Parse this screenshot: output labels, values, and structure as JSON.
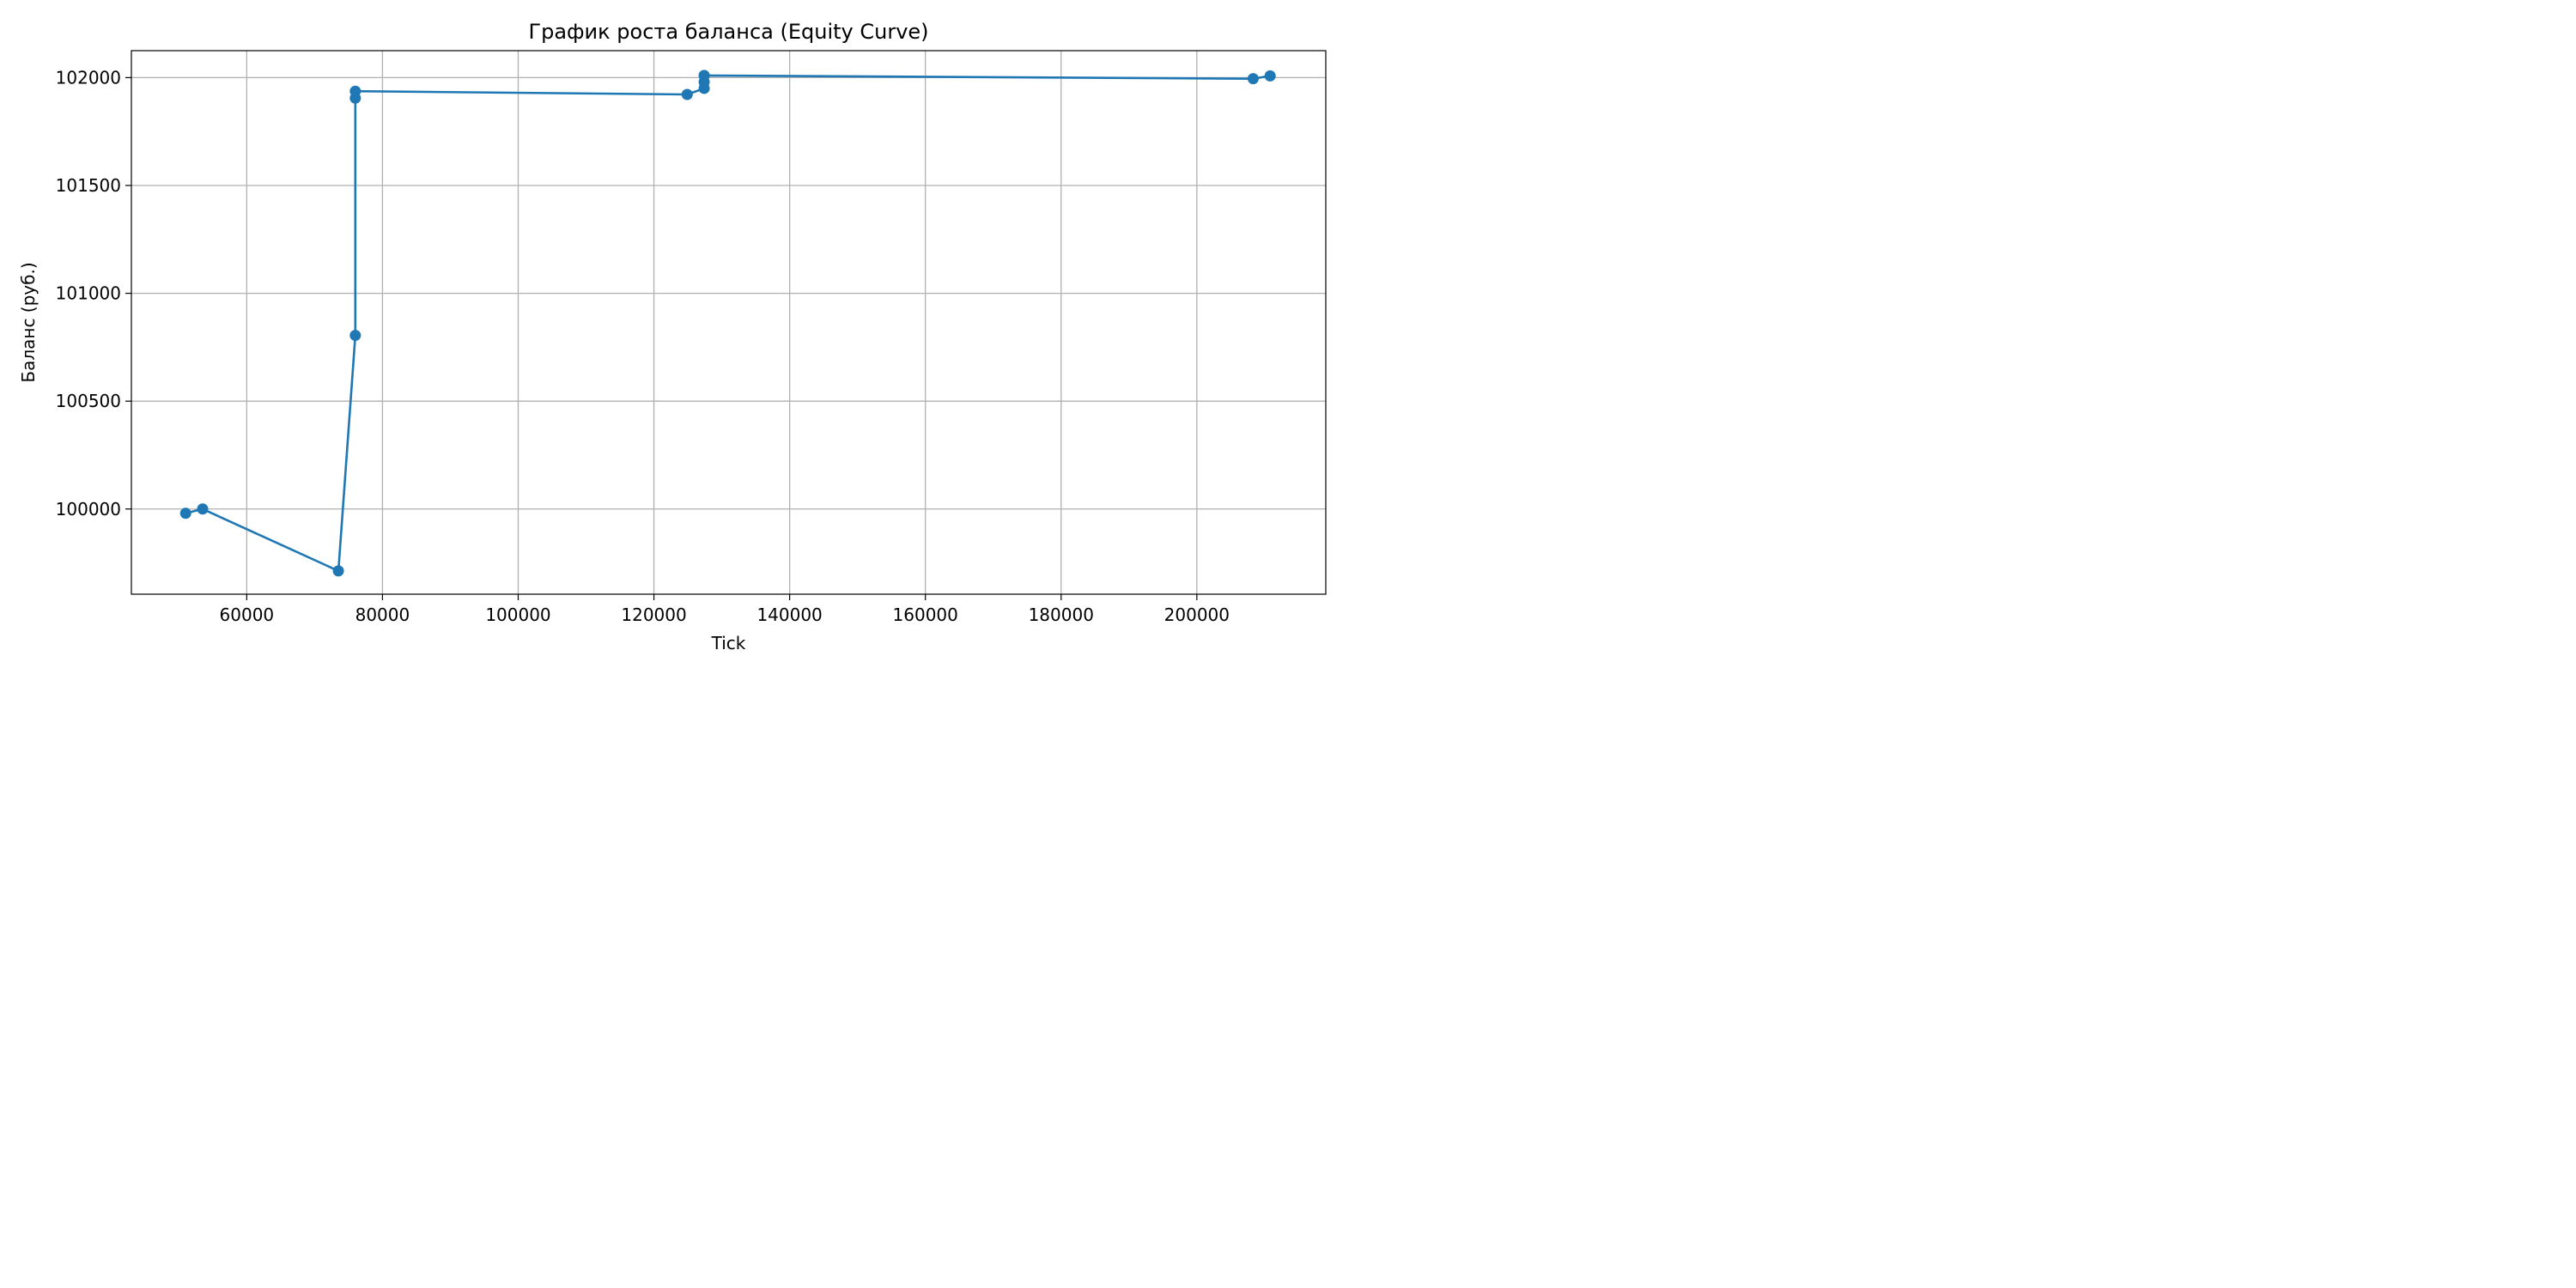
{
  "chart_data": {
    "type": "line",
    "title": "График роста баланса (Equity Curve)",
    "xlabel": "Tick",
    "ylabel": "Баланс (руб.)",
    "xlim": [
      43000,
      219000
    ],
    "ylim": [
      99605,
      102125
    ],
    "xticks": [
      60000,
      80000,
      100000,
      120000,
      140000,
      160000,
      180000,
      200000
    ],
    "yticks": [
      100000,
      100500,
      101000,
      101500,
      102000
    ],
    "grid": true,
    "legend": "none",
    "marker": "circle",
    "colors": {
      "series": "#1f77b4",
      "grid": "#b0b0b0",
      "axes": "#000000",
      "background": "#ffffff"
    },
    "series": [
      {
        "x": [
          51000,
          53500,
          73500,
          76000,
          76000,
          76000,
          124900,
          127400,
          127400,
          127400,
          208300,
          210800
        ],
        "y": [
          99980,
          100000,
          99713,
          100805,
          101905,
          101937,
          101922,
          101950,
          101980,
          102010,
          101995,
          102008
        ]
      }
    ]
  }
}
